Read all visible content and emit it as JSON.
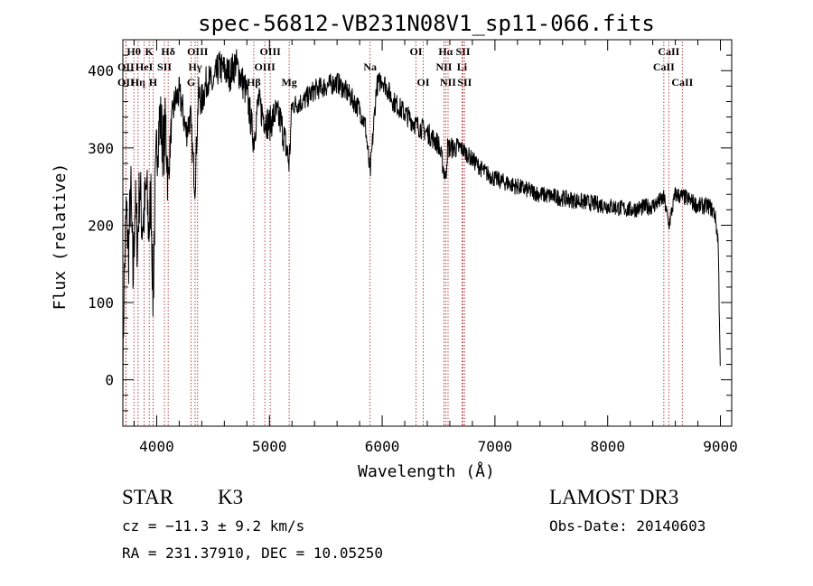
{
  "chart_data": {
    "type": "line",
    "title": "spec-56812-VB231N08V1_sp11-066.fits",
    "xlabel": "Wavelength (Å)",
    "ylabel": "Flux (relative)",
    "xlim": [
      3700,
      9100
    ],
    "ylim": [
      -60,
      440
    ],
    "xticks": [
      4000,
      5000,
      6000,
      7000,
      8000,
      9000
    ],
    "xtick_labels": [
      "4000",
      "5000",
      "6000",
      "7000",
      "8000",
      "9000"
    ],
    "yticks": [
      0,
      100,
      200,
      300,
      400
    ],
    "ytick_labels": [
      "0",
      "100",
      "200",
      "300",
      "400"
    ],
    "grid": false,
    "series": [
      {
        "name": "spectrum",
        "color": "#000000",
        "x": [
          3700,
          3710,
          3730,
          3750,
          3770,
          3790,
          3810,
          3830,
          3850,
          3870,
          3890,
          3910,
          3930,
          3950,
          3968,
          3985,
          4000,
          4030,
          4060,
          4080,
          4101,
          4130,
          4160,
          4200,
          4230,
          4260,
          4300,
          4320,
          4340,
          4370,
          4400,
          4450,
          4500,
          4550,
          4600,
          4650,
          4700,
          4750,
          4800,
          4861,
          4900,
          4950,
          5000,
          5050,
          5100,
          5150,
          5175,
          5200,
          5300,
          5400,
          5500,
          5600,
          5700,
          5800,
          5850,
          5893,
          5950,
          6000,
          6100,
          6200,
          6300,
          6400,
          6500,
          6563,
          6580,
          6600,
          6700,
          6800,
          6900,
          7000,
          7200,
          7400,
          7600,
          7800,
          8000,
          8200,
          8400,
          8500,
          8542,
          8600,
          8700,
          8800,
          8900,
          8950,
          8980,
          9000
        ],
        "y": [
          5,
          120,
          220,
          160,
          250,
          130,
          230,
          175,
          255,
          200,
          215,
          250,
          190,
          240,
          100,
          230,
          300,
          340,
          300,
          330,
          255,
          330,
          360,
          370,
          350,
          320,
          340,
          290,
          250,
          370,
          360,
          390,
          380,
          405,
          400,
          395,
          410,
          390,
          370,
          310,
          360,
          340,
          330,
          345,
          335,
          300,
          280,
          355,
          360,
          375,
          380,
          385,
          370,
          350,
          330,
          265,
          380,
          390,
          360,
          345,
          330,
          320,
          305,
          260,
          300,
          300,
          300,
          285,
          270,
          260,
          250,
          240,
          235,
          230,
          225,
          220,
          225,
          235,
          200,
          240,
          235,
          225,
          225,
          215,
          180,
          0
        ]
      }
    ],
    "line_markers": [
      {
        "label": "Hθ",
        "x": 3798,
        "row": 1
      },
      {
        "label": "OII",
        "x": 3727,
        "row": 2
      },
      {
        "label": "OII",
        "x": 3727,
        "row": 3
      },
      {
        "label": "Hη",
        "x": 3835,
        "row": 3
      },
      {
        "label": "HeI",
        "x": 3889,
        "row": 2
      },
      {
        "label": "K",
        "x": 3934,
        "row": 1
      },
      {
        "label": "H",
        "x": 3968,
        "row": 3
      },
      {
        "label": "SII",
        "x": 4069,
        "row": 2
      },
      {
        "label": "Hδ",
        "x": 4102,
        "row": 1
      },
      {
        "label": "OIII",
        "x": 4363,
        "row": 1
      },
      {
        "label": "Hγ",
        "x": 4341,
        "row": 2
      },
      {
        "label": "G",
        "x": 4305,
        "row": 3
      },
      {
        "label": "Hβ",
        "x": 4861,
        "row": 3
      },
      {
        "label": "OIII",
        "x": 5007,
        "row": 1
      },
      {
        "label": "OIII",
        "x": 4959,
        "row": 2
      },
      {
        "label": "Mg",
        "x": 5175,
        "row": 3
      },
      {
        "label": "Na",
        "x": 5893,
        "row": 2
      },
      {
        "label": "OI",
        "x": 6300,
        "row": 1
      },
      {
        "label": "OI",
        "x": 6364,
        "row": 3
      },
      {
        "label": "Hα",
        "x": 6563,
        "row": 1
      },
      {
        "label": "NII",
        "x": 6548,
        "row": 2
      },
      {
        "label": "NII",
        "x": 6584,
        "row": 3
      },
      {
        "label": "SII",
        "x": 6717,
        "row": 1
      },
      {
        "label": "Li",
        "x": 6708,
        "row": 2
      },
      {
        "label": "SII",
        "x": 6731,
        "row": 3
      },
      {
        "label": "CaII",
        "x": 8542,
        "row": 1
      },
      {
        "label": "CaII",
        "x": 8498,
        "row": 2
      },
      {
        "label": "CaII",
        "x": 8662,
        "row": 3
      }
    ],
    "marker_color": "#b03030"
  },
  "info": {
    "class": "STAR",
    "subclass": "K3",
    "survey": "LAMOST DR3",
    "cz": "cz = −11.3 ± 9.2 km/s",
    "obs_date": "Obs-Date: 20140603",
    "coords": "RA = 231.37910, DEC =  10.05250"
  }
}
